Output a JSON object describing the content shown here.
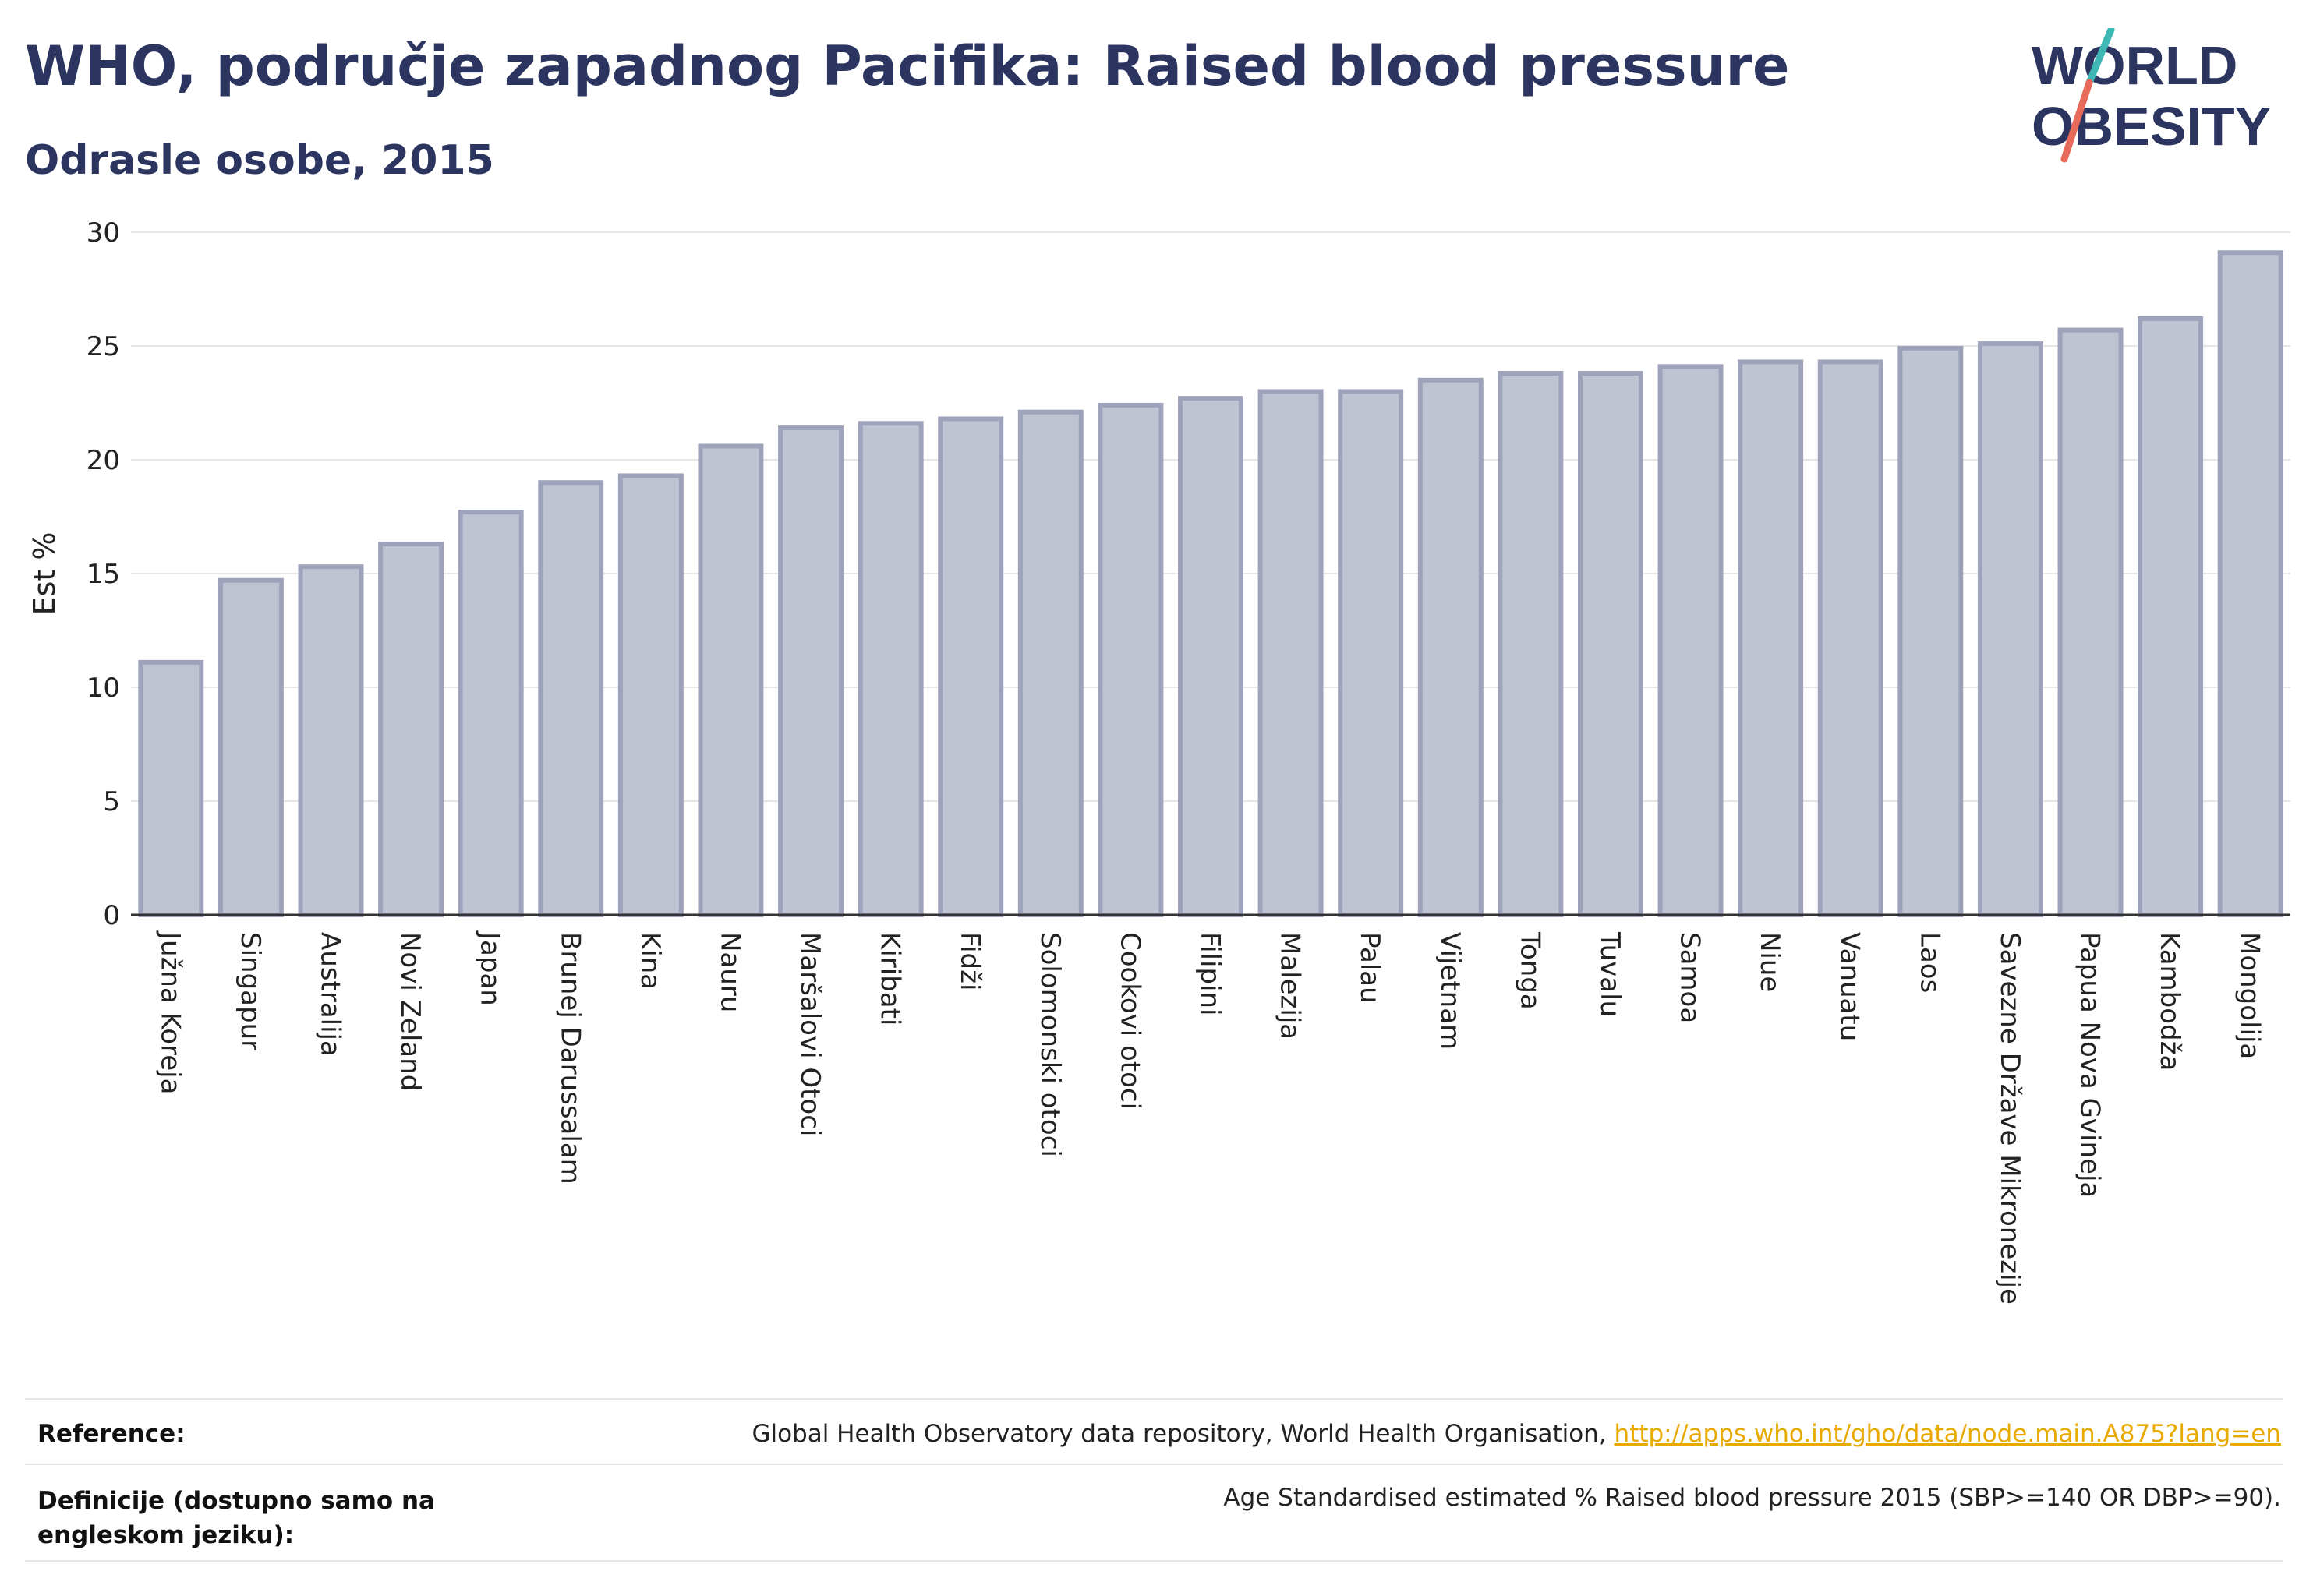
{
  "header": {
    "title": "WHO, područje zapadnog Pacifika: Raised blood pressure",
    "subtitle": "Odrasle osobe, 2015"
  },
  "logo": {
    "line1": "WORLD",
    "line2": "OBESITY",
    "colors": {
      "text": "#2b3560",
      "slash_teal": "#3fb7b5",
      "slash_coral": "#e86a5a"
    }
  },
  "chart_data": {
    "type": "bar",
    "ylabel": "Est %",
    "ylim": [
      0,
      30
    ],
    "yticks": [
      0,
      5,
      10,
      15,
      20,
      25,
      30
    ],
    "grid": true,
    "bar_color": "#c0c4d2",
    "bar_border": "#9ea3bb",
    "categories": [
      "Južna Koreja",
      "Singapur",
      "Australija",
      "Novi Zeland",
      "Japan",
      "Brunej Darussalam",
      "Kina",
      "Nauru",
      "Maršalovi Otoci",
      "Kiribati",
      "Fidži",
      "Solomonski otoci",
      "Cookovi otoci",
      "Filipini",
      "Malezija",
      "Palau",
      "Vijetnam",
      "Tonga",
      "Tuvalu",
      "Samoa",
      "Niue",
      "Vanuatu",
      "Laos",
      "Savezne Države Mikronezije",
      "Papua Nova Gvineja",
      "Kambodža",
      "Mongolija"
    ],
    "values": [
      11.1,
      14.7,
      15.3,
      16.3,
      17.7,
      19.0,
      19.3,
      20.6,
      21.4,
      21.6,
      21.8,
      22.1,
      22.4,
      22.7,
      23.0,
      23.0,
      23.5,
      23.8,
      23.8,
      24.1,
      24.3,
      24.3,
      24.9,
      25.1,
      25.7,
      26.2,
      29.1
    ]
  },
  "footer": {
    "reference_label": "Reference:",
    "reference_text": "Global Health Observatory data repository, World Health Organisation, ",
    "reference_link": "http://apps.who.int/gho/data/node.main.A875?lang=en",
    "definition_label": "Definicije (dostupno samo na engleskom jeziku):",
    "definition_text": "Age Standardised estimated % Raised blood pressure 2015 (SBP>=140 OR DBP>=90)."
  }
}
